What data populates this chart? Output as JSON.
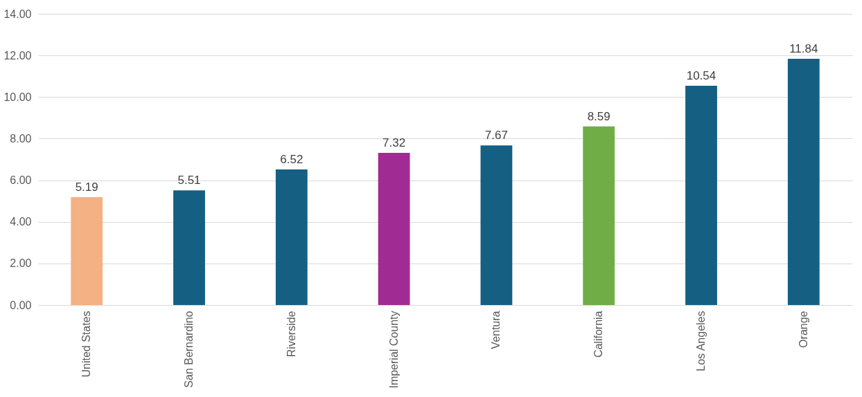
{
  "chart_data": {
    "type": "bar",
    "categories": [
      "United States",
      "San Bernardino",
      "Riverside",
      "Imperial County",
      "Ventura",
      "California",
      "Los Angeles",
      "Orange"
    ],
    "values": [
      5.19,
      5.51,
      6.52,
      7.32,
      7.67,
      8.59,
      10.54,
      11.84
    ],
    "colors": [
      "#f4b183",
      "#156082",
      "#156082",
      "#a02b93",
      "#156082",
      "#70ad47",
      "#156082",
      "#156082"
    ],
    "ylim": [
      0,
      14
    ],
    "yticks": [
      {
        "value": 0,
        "label": "0.00"
      },
      {
        "value": 2,
        "label": "2.00"
      },
      {
        "value": 4,
        "label": "4.00"
      },
      {
        "value": 6,
        "label": "6.00"
      },
      {
        "value": 8,
        "label": "8.00"
      },
      {
        "value": 10,
        "label": "10.00"
      },
      {
        "value": 12,
        "label": "12.00"
      },
      {
        "value": 14,
        "label": "14.00"
      }
    ],
    "grid": "y",
    "data_labels": true
  }
}
